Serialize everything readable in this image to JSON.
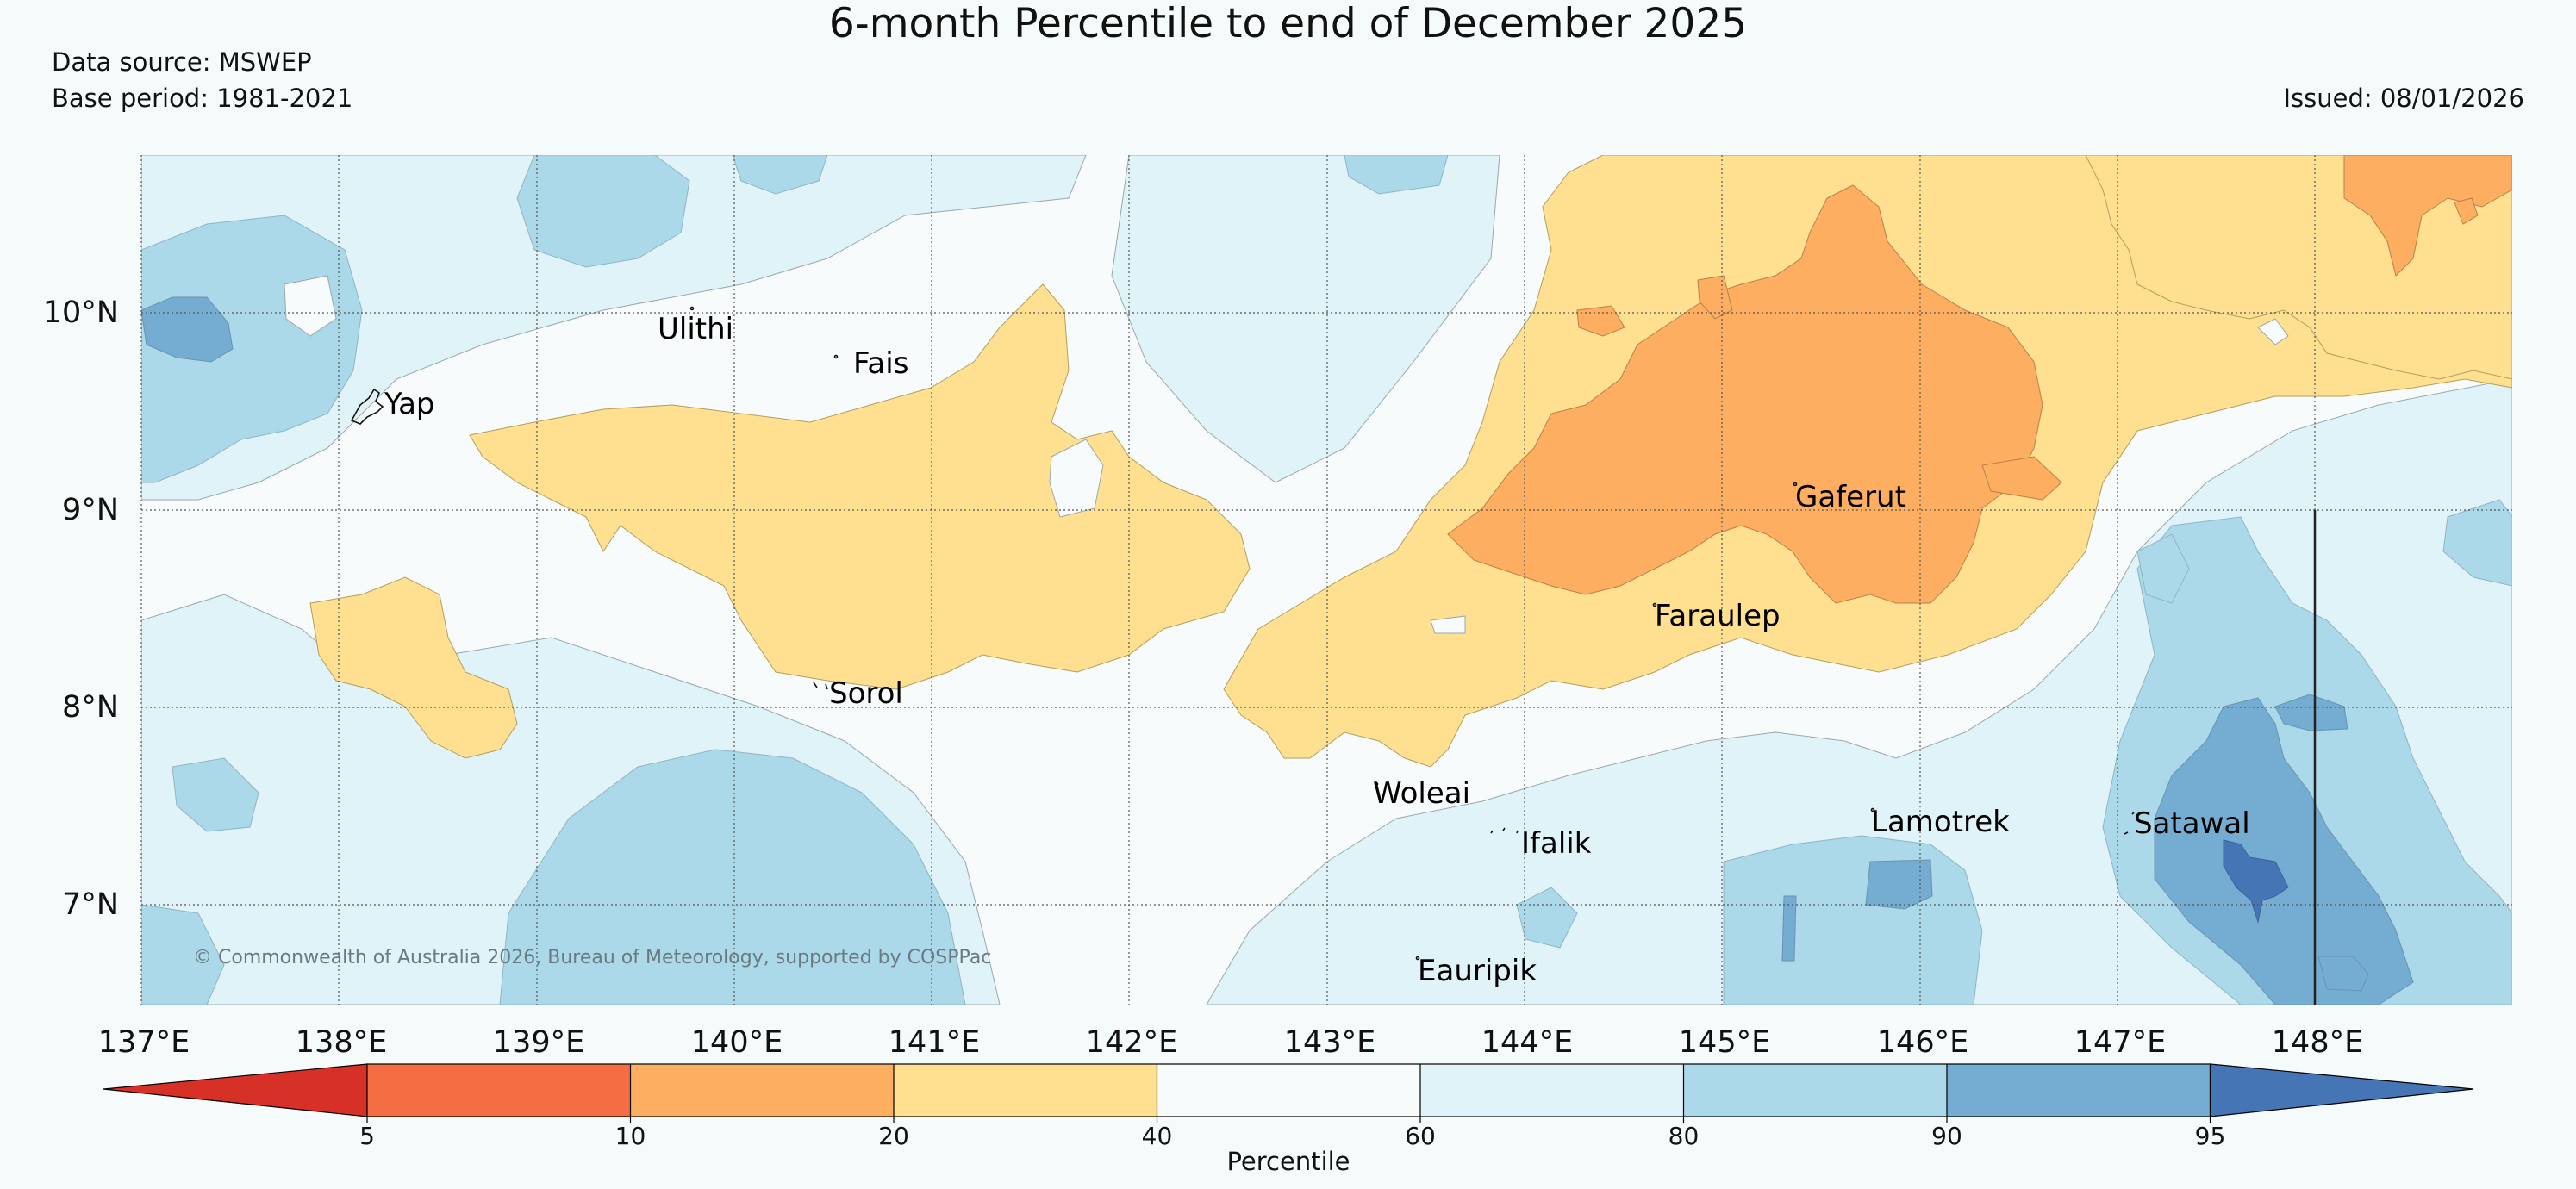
{
  "header": {
    "title": "6-month Percentile to end of December 2025",
    "data_source": "Data source: MSWEP",
    "base_period": "Base period: 1981-2021",
    "issued": "Issued: 08/01/2026"
  },
  "map": {
    "lat_labels": [
      "10°N",
      "9°N",
      "8°N",
      "7°N"
    ],
    "lon_labels": [
      "137°E",
      "138°E",
      "139°E",
      "140°E",
      "141°E",
      "142°E",
      "143°E",
      "144°E",
      "145°E",
      "146°E",
      "147°E",
      "148°E"
    ],
    "places": [
      "Yap",
      "Ulithi",
      "Fais",
      "Sorol",
      "Gaferut",
      "Faraulep",
      "Woleai",
      "Ifalik",
      "Eauripik",
      "Lamotrek",
      "Satawal"
    ],
    "credit": "© Commonwealth of Australia 2026, Bureau of Meteorology, supported by COSPPac"
  },
  "legend": {
    "title": "Percentile",
    "ticks": [
      "5",
      "10",
      "20",
      "40",
      "60",
      "80",
      "90",
      "95"
    ],
    "colors": [
      "#d73027",
      "#f46d43",
      "#fdae61",
      "#fee090",
      "#f7fbfc",
      "#e0f3f8",
      "#abd9e9",
      "#74add1",
      "#4575b4"
    ]
  }
}
